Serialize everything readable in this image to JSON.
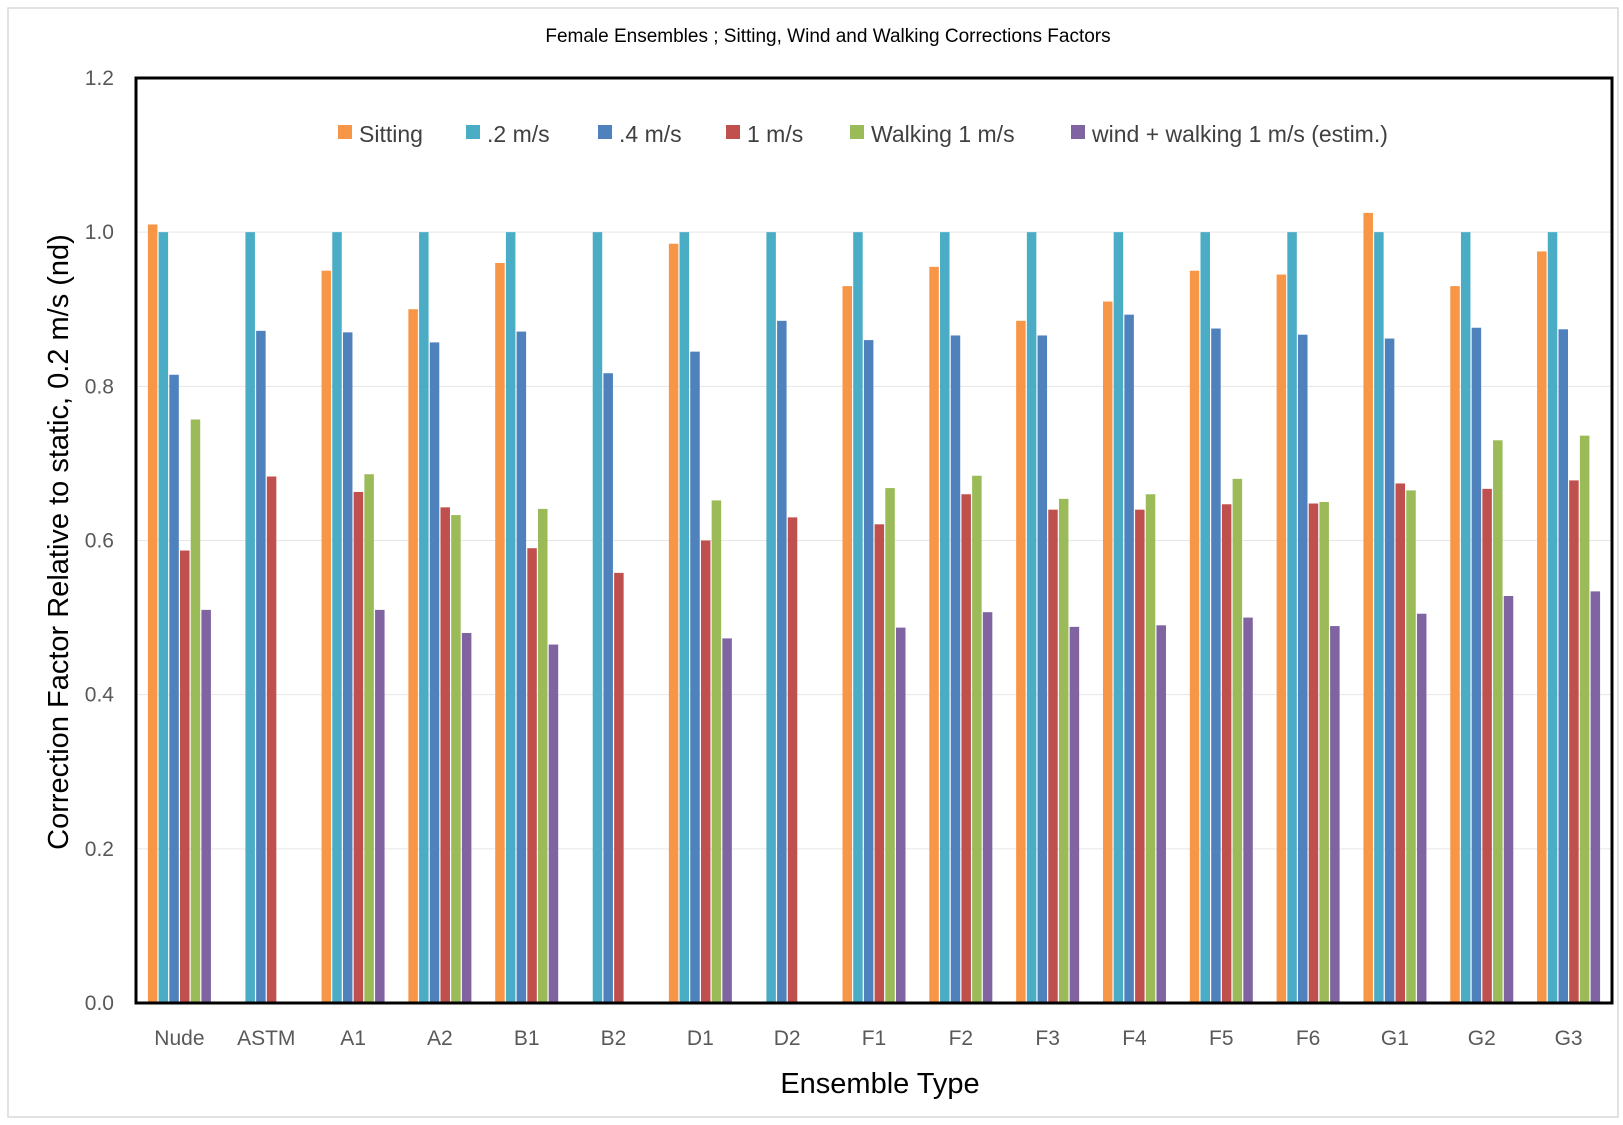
{
  "chart_data": {
    "type": "bar",
    "title": "Female Ensembles ; Sitting, Wind and Walking Corrections Factors",
    "xlabel": "Ensemble Type",
    "ylabel": "Correction Factor Relative to static, 0.2 m/s (nd)",
    "ylim": [
      0,
      1.2
    ],
    "yticks": [
      "0.0",
      "0.2",
      "0.4",
      "0.6",
      "0.8",
      "1.0",
      "1.2"
    ],
    "grid": true,
    "legend_position": "top",
    "categories": [
      "Nude",
      "ASTM",
      "A1",
      "A2",
      "B1",
      "B2",
      "D1",
      "D2",
      "F1",
      "F2",
      "F3",
      "F4",
      "F5",
      "F6",
      "G1",
      "G2",
      "G3"
    ],
    "series": [
      {
        "name": "Sitting",
        "color": "#F79646",
        "values": [
          1.01,
          null,
          0.95,
          0.9,
          0.96,
          null,
          0.985,
          null,
          0.93,
          0.955,
          0.885,
          0.91,
          0.95,
          0.945,
          1.025,
          0.93,
          0.975
        ]
      },
      {
        "name": ".2 m/s",
        "color": "#4BACC6",
        "values": [
          1.0,
          1.0,
          1.0,
          1.0,
          1.0,
          1.0,
          1.0,
          1.0,
          1.0,
          1.0,
          1.0,
          1.0,
          1.0,
          1.0,
          1.0,
          1.0,
          1.0
        ]
      },
      {
        "name": ".4 m/s",
        "color": "#4F81BD",
        "values": [
          0.815,
          0.872,
          0.87,
          0.857,
          0.871,
          0.817,
          0.845,
          0.885,
          0.86,
          0.866,
          0.866,
          0.893,
          0.875,
          0.867,
          0.862,
          0.876,
          0.874
        ]
      },
      {
        "name": "1 m/s",
        "color": "#C0504D",
        "values": [
          0.587,
          0.683,
          0.663,
          0.643,
          0.59,
          0.558,
          0.6,
          0.63,
          0.621,
          0.66,
          0.64,
          0.64,
          0.647,
          0.648,
          0.674,
          0.667,
          0.678
        ]
      },
      {
        "name": "Walking 1 m/s",
        "color": "#9BBB59",
        "values": [
          0.757,
          null,
          0.686,
          0.633,
          0.641,
          null,
          0.652,
          null,
          0.668,
          0.684,
          0.654,
          0.66,
          0.68,
          0.65,
          0.665,
          0.73,
          0.736
        ]
      },
      {
        "name": "wind + walking 1 m/s  (estim.)",
        "color": "#8064A2",
        "values": [
          0.51,
          null,
          0.51,
          0.48,
          0.465,
          null,
          0.473,
          null,
          0.487,
          0.507,
          0.488,
          0.49,
          0.5,
          0.489,
          0.505,
          0.528,
          0.534
        ]
      }
    ]
  }
}
